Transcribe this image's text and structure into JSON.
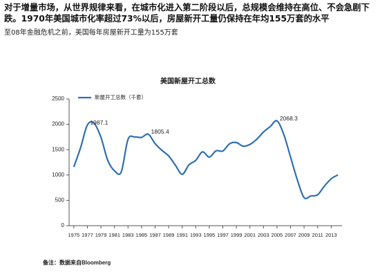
{
  "header": {
    "text": "对于增量市场，从世界规律来看，在城市化进入第二阶段以后，总规模会维持在高位、不会急剧下跌。1970年美国城市化率超过73%以后，房屋新开工量仍保持在年均155万套的水平",
    "subtext": "至08年金融危机之前，美国每年房屋新开工量为155万套"
  },
  "chart_data": {
    "type": "line",
    "title": "美国新屋开工总数",
    "x": [
      1975,
      1976,
      1977,
      1978,
      1979,
      1980,
      1981,
      1982,
      1983,
      1984,
      1985,
      1986,
      1987,
      1988,
      1989,
      1990,
      1991,
      1992,
      1993,
      1994,
      1995,
      1996,
      1997,
      1998,
      1999,
      2000,
      2001,
      2002,
      2003,
      2004,
      2005,
      2006,
      2007,
      2008,
      2009,
      2010,
      2011,
      2012,
      2013,
      2014
    ],
    "series": [
      {
        "name": "新屋开工总数（千套）",
        "color": "#2e6eb2",
        "values": [
          1160,
          1540,
          1987.1,
          2020,
          1745,
          1292,
          1084,
          1062,
          1703,
          1750,
          1742,
          1805.4,
          1620,
          1488,
          1376,
          1193,
          1014,
          1200,
          1288,
          1457,
          1354,
          1477,
          1474,
          1617,
          1641,
          1569,
          1603,
          1705,
          1848,
          1956,
          2068.3,
          1801,
          1355,
          906,
          554,
          587,
          609,
          781,
          925,
          1003
        ],
        "value_labels": [
          null,
          null,
          "1987.1",
          null,
          null,
          null,
          null,
          null,
          null,
          null,
          null,
          "1805.4",
          null,
          null,
          null,
          null,
          null,
          null,
          null,
          null,
          null,
          null,
          null,
          null,
          null,
          null,
          null,
          null,
          null,
          null,
          "2068.3",
          null,
          null,
          null,
          null,
          null,
          null,
          null,
          null,
          null
        ]
      }
    ],
    "xlim": [
      1974.3,
      2014.6
    ],
    "xticks": [
      1975,
      1977,
      1979,
      1981,
      1983,
      1985,
      1987,
      1989,
      1991,
      1993,
      1995,
      1997,
      1999,
      2001,
      2003,
      2005,
      2007,
      2009,
      2011,
      2013
    ],
    "ylim": [
      0,
      2500
    ],
    "yticks": [
      0,
      500,
      1000,
      1500,
      2000,
      2500
    ],
    "grid": false,
    "legend": "top-left",
    "note": "备注：数据来自Bloomberg"
  }
}
